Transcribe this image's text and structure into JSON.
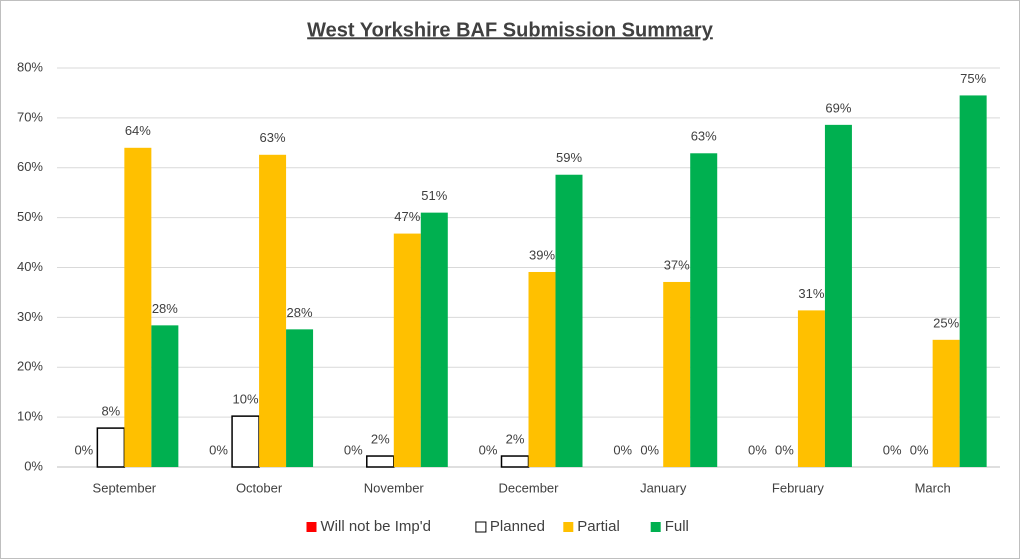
{
  "chart_data": {
    "type": "bar",
    "title": "West Yorkshire BAF Submission Summary",
    "categories": [
      "September",
      "October",
      "November",
      "December",
      "January",
      "February",
      "March"
    ],
    "series": [
      {
        "name": "Will not be Imp'd",
        "color": "#ff0000",
        "values": [
          0,
          0,
          0,
          0,
          0,
          0,
          0
        ],
        "value_labels": [
          "0%",
          "0%",
          "0%",
          "0%",
          "0%",
          "0%",
          "0%"
        ]
      },
      {
        "name": "Planned",
        "color": "#ffffff",
        "values": [
          7.8,
          10.2,
          2.2,
          2.2,
          0,
          0,
          0
        ],
        "value_labels": [
          "8%",
          "10%",
          "2%",
          "2%",
          "0%",
          "0%",
          "0%"
        ]
      },
      {
        "name": "Partial",
        "color": "#ffc000",
        "values": [
          64.0,
          62.6,
          46.8,
          39.1,
          37.1,
          31.4,
          25.5
        ],
        "value_labels": [
          "64%",
          "63%",
          "47%",
          "39%",
          "37%",
          "31%",
          "25%"
        ]
      },
      {
        "name": "Full",
        "color": "#00b050",
        "values": [
          28.4,
          27.6,
          51.0,
          58.6,
          62.9,
          68.6,
          74.5
        ],
        "value_labels": [
          "28%",
          "28%",
          "51%",
          "59%",
          "63%",
          "69%",
          "75%"
        ]
      }
    ],
    "ylim": [
      0,
      80
    ],
    "yticks": [
      {
        "value": 0,
        "label": "0%"
      },
      {
        "value": 10,
        "label": "10%"
      },
      {
        "value": 20,
        "label": "20%"
      },
      {
        "value": 30,
        "label": "30%"
      },
      {
        "value": 40,
        "label": "40%"
      },
      {
        "value": 50,
        "label": "50%"
      },
      {
        "value": 60,
        "label": "60%"
      },
      {
        "value": 70,
        "label": "70%"
      },
      {
        "value": 80,
        "label": "80%"
      }
    ],
    "grid": true,
    "legend": "bottom"
  }
}
